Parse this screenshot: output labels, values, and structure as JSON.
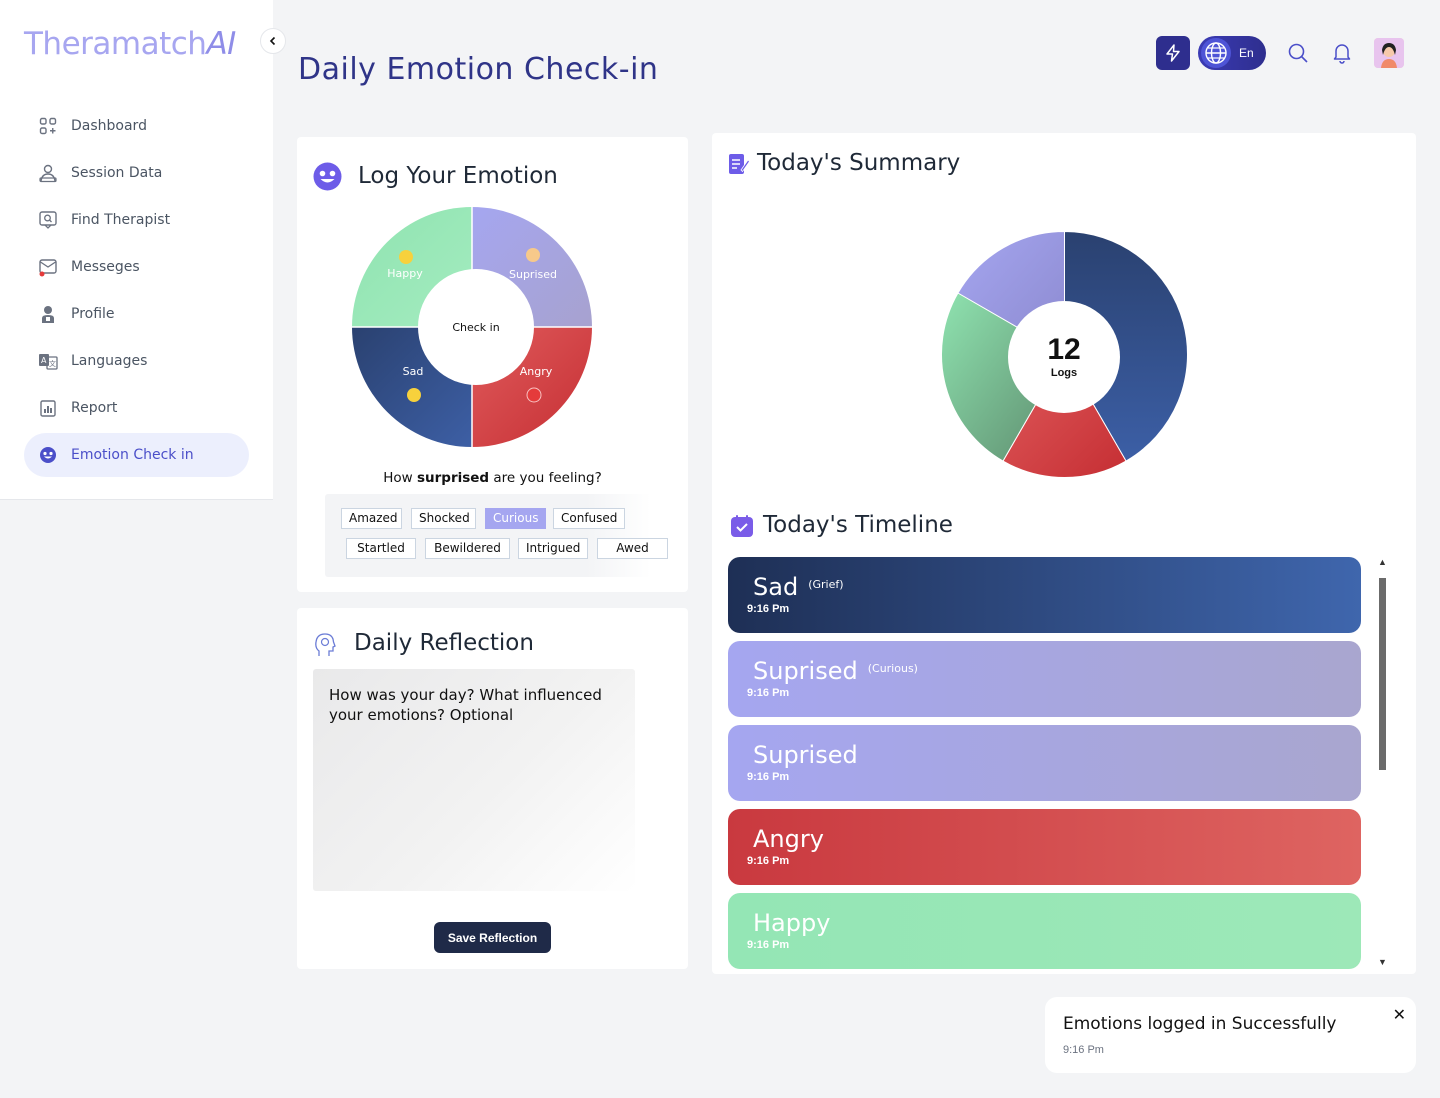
{
  "app": {
    "logo_main": "Theramatch",
    "logo_suffix": "AI",
    "collapse_icon": "chevron-left-icon"
  },
  "sidebar": {
    "items": [
      {
        "label": "Dashboard",
        "icon": "dashboard-icon"
      },
      {
        "label": "Session Data",
        "icon": "session-icon"
      },
      {
        "label": "Find Therapist",
        "icon": "find-therapist-icon"
      },
      {
        "label": "Messeges",
        "icon": "messages-icon"
      },
      {
        "label": "Profile",
        "icon": "profile-icon"
      },
      {
        "label": "Languages",
        "icon": "languages-icon"
      },
      {
        "label": "Report",
        "icon": "report-icon"
      },
      {
        "label": "Emotion Check in",
        "icon": "emotion-icon",
        "active": true
      }
    ]
  },
  "header": {
    "title": "Daily Emotion Check-in",
    "language": "En"
  },
  "log": {
    "title": "Log Your Emotion",
    "wheel_center": "Check in",
    "segments": [
      {
        "label": "Happy",
        "color": "#8fe3b0"
      },
      {
        "label": "Suprised",
        "color": "#a9a9ea"
      },
      {
        "label": "Angry",
        "color": "#d9474a"
      },
      {
        "label": "Sad",
        "color": "#2f4f8a"
      }
    ],
    "question_prefix": "How ",
    "question_emph": "surprised",
    "question_suffix": " are you feeling?",
    "chips": [
      "Amazed",
      "Shocked",
      "Curious",
      "Confused",
      "Startled",
      "Bewildered",
      "Intrigued",
      "Awed"
    ],
    "selected_chip": "Curious"
  },
  "reflection": {
    "title": "Daily Reflection",
    "placeholder": "How was your day? What influenced your emotions? Optional",
    "save_label": "Save Reflection"
  },
  "summary": {
    "title": "Today's Summary",
    "total": "12",
    "total_label": "Logs",
    "timeline_title": "Today's Timeline",
    "timeline": [
      {
        "emotion": "Sad",
        "sub": "(Grief)",
        "time": "9:16 Pm",
        "color_from": "#1e2f55",
        "color_to": "#3f66ad"
      },
      {
        "emotion": "Suprised",
        "sub": "(Curious)",
        "time": "9:16 Pm",
        "color_from": "#a5a6f0",
        "color_to": "#a9a6cf"
      },
      {
        "emotion": "Suprised",
        "sub": "",
        "time": "9:16 Pm",
        "color_from": "#a5a6f0",
        "color_to": "#a9a6cf"
      },
      {
        "emotion": "Angry",
        "sub": "",
        "time": "9:16 Pm",
        "color_from": "#c9393f",
        "color_to": "#de6461"
      },
      {
        "emotion": "Happy",
        "sub": "",
        "time": "9:16 Pm",
        "color_from": "#94e6b5",
        "color_to": "#9de8b8"
      }
    ]
  },
  "chart_data": {
    "type": "pie",
    "title": "",
    "center_value": 12,
    "center_label": "Logs",
    "slices": [
      {
        "label": "Sad",
        "value": 5,
        "color": "#2f4f8a"
      },
      {
        "label": "Angry",
        "value": 2,
        "color": "#d9474a"
      },
      {
        "label": "Happy",
        "value": 3,
        "color": "#8fe3b0"
      },
      {
        "label": "Suprised",
        "value": 2,
        "color": "#a9a9ea"
      }
    ]
  },
  "toast": {
    "title": "Emotions logged in Successfully",
    "time": "9:16 Pm"
  }
}
